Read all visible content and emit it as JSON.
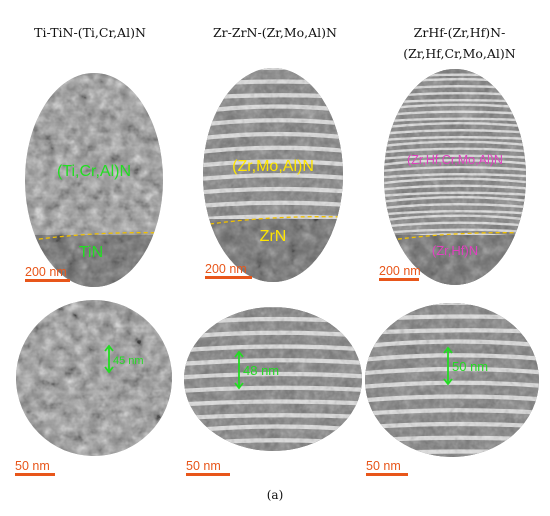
{
  "headers": [
    {
      "line1": "Ti-TiN-(Ti,Cr,Al)N",
      "line2": ""
    },
    {
      "line1": "Zr-ZrN-(Zr,Mo,Al)N",
      "line2": ""
    },
    {
      "line1": "ZrHf-(Zr,Hf)N-",
      "line2": "(Zr,Hf,Cr,Mo,Al)N"
    }
  ],
  "top_row": [
    {
      "upper_label": "(Ti,Cr,Al)N",
      "lower_label": "TiN",
      "label_color": "#22dd22",
      "scale": "200 nm",
      "variant": "granular"
    },
    {
      "upper_label": "(Zr,Mo,Al)N",
      "lower_label": "ZrN",
      "label_color": "#ffe600",
      "scale": "200 nm",
      "variant": "layered"
    },
    {
      "upper_label": "(Zr,Hf,Cr,Mo,Al)N",
      "lower_label": "(Zr,Hf)N",
      "label_color": "#e040c0",
      "scale": "200 nm",
      "variant": "finelayered"
    }
  ],
  "bottom_row": [
    {
      "thickness": "45 nm",
      "scale": "50 nm",
      "variant": "granular"
    },
    {
      "thickness": "48 nm",
      "scale": "50 nm",
      "variant": "layered"
    },
    {
      "thickness": "50 nm",
      "scale": "50 nm",
      "variant": "layered"
    }
  ],
  "interface_color": "#f0c000",
  "scale_bar_color": "#e8561a",
  "annotation_color": "#22dd22",
  "caption": "(a)"
}
